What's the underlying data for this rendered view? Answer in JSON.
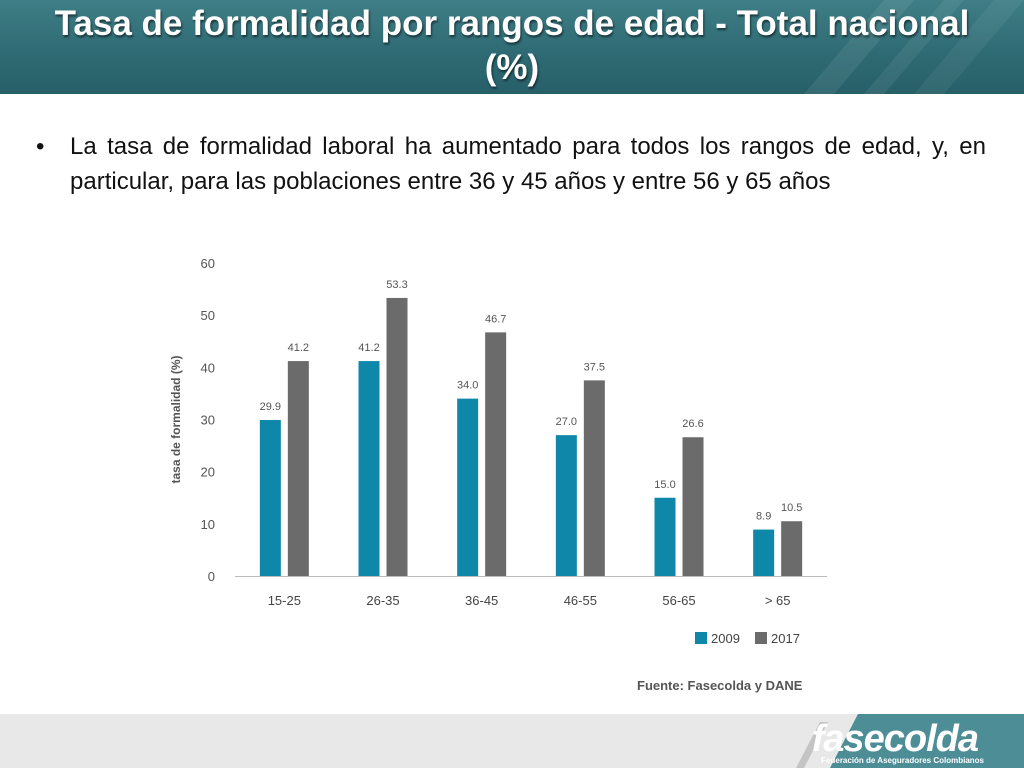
{
  "slide": {
    "title": "Tasa de formalidad por rangos de edad - Total nacional (%)",
    "bullet_mark": "•",
    "bullet_text": "La tasa de formalidad laboral ha aumentado para todos los rangos de edad, y, en particular, para las poblaciones entre 36 y 45 años y entre 56 y 65 años",
    "source": "Fuente: Fasecolda y DANE",
    "logo": "fasecolda",
    "logo_subtitle": "Federación de Aseguradores Colombianos"
  },
  "chart_data": {
    "type": "bar",
    "categories": [
      "15-25",
      "26-35",
      "36-45",
      "46-55",
      "56-65",
      "> 65"
    ],
    "series": [
      {
        "name": "2009",
        "color": "#0e87a8",
        "values": [
          29.9,
          41.2,
          34.0,
          27.0,
          15.0,
          8.9
        ],
        "labels": [
          "29.9",
          "41.2",
          "34.0",
          "27.0",
          "15.0",
          "8.9"
        ]
      },
      {
        "name": "2017",
        "color": "#6b6b6b",
        "values": [
          41.2,
          53.3,
          46.7,
          37.5,
          26.6,
          10.5
        ],
        "labels": [
          "41.2",
          "53.3",
          "46.7",
          "37.5",
          "26.6",
          "10.5"
        ]
      }
    ],
    "ylabel": "tasa de formalidad (%)",
    "ylim": [
      0,
      60
    ],
    "yticks": [
      "0",
      "10",
      "20",
      "30",
      "40",
      "50",
      "60"
    ],
    "grid": false,
    "legend": "bottom-right"
  }
}
